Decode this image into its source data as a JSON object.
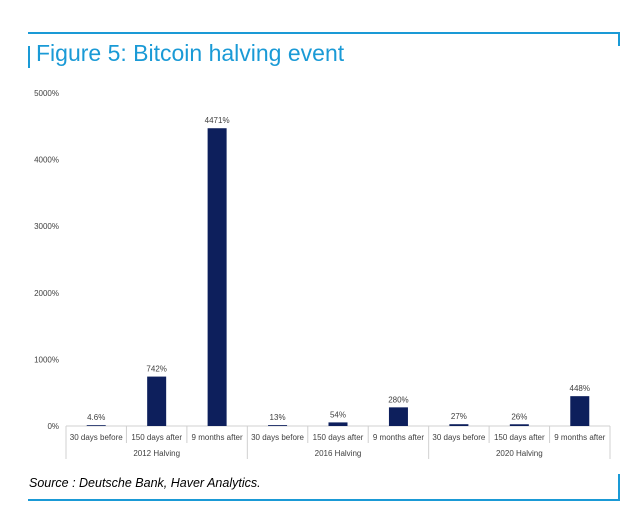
{
  "title": "Figure 5: Bitcoin halving event",
  "source": "Source : Deutsche Bank, Haver Analytics.",
  "colors": {
    "accent": "#1a9ad6",
    "bar": "#0d1f5c",
    "axis": "#d0d0d0",
    "text": "#404040"
  },
  "chart_data": {
    "type": "bar",
    "title": "",
    "xlabel": "",
    "ylabel": "",
    "ylim": [
      0,
      5000
    ],
    "y_ticks": [
      "0%",
      "1000%",
      "2000%",
      "3000%",
      "4000%",
      "5000%"
    ],
    "y_tick_values": [
      0,
      1000,
      2000,
      3000,
      4000,
      5000
    ],
    "grid": false,
    "groups": [
      "2012 Halving",
      "2016 Halving",
      "2020 Halving"
    ],
    "categories": [
      "30 days before",
      "150 days after",
      "9 months after",
      "30 days before",
      "150 days after",
      "9 months after",
      "30 days before",
      "150 days after",
      "9 months after"
    ],
    "values": [
      4.6,
      742,
      4471,
      13,
      54,
      280,
      27,
      26,
      448
    ],
    "data_labels": [
      "4.6%",
      "742%",
      "4471%",
      "13%",
      "54%",
      "280%",
      "27%",
      "26%",
      "448%"
    ]
  }
}
